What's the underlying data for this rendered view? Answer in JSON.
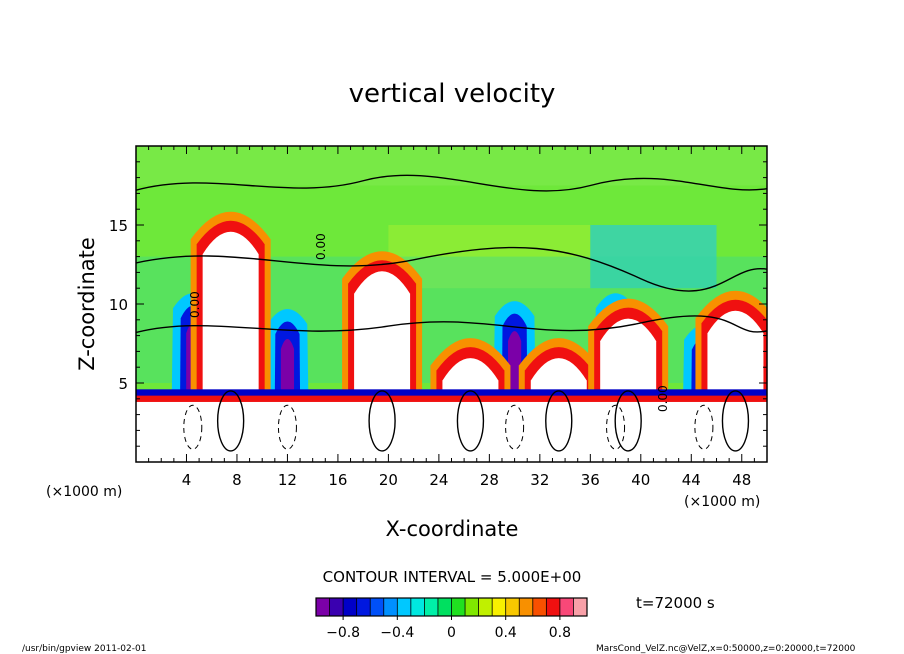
{
  "chart_data": {
    "type": "heatmap",
    "title": "vertical velocity",
    "xlabel": "X-coordinate",
    "ylabel": "Z-coordinate",
    "x_unit_label": "(×1000 m)",
    "y_unit_label": "(×1000 m)",
    "xlim": [
      0,
      50
    ],
    "ylim": [
      0,
      20
    ],
    "x_ticks": [
      4,
      8,
      12,
      16,
      20,
      24,
      28,
      32,
      36,
      40,
      44,
      48
    ],
    "y_ticks": [
      5,
      10,
      15
    ],
    "contour_interval_text": "CONTOUR INTERVAL = 5.000E+00",
    "contour_labels": [
      "0.00",
      "0.00",
      "0.00"
    ],
    "time_text": "t=72000 s",
    "colorbar": {
      "min": -1.0,
      "max": 1.0,
      "tick_values": [
        -0.8,
        -0.4,
        0,
        0.4,
        0.8
      ],
      "tick_labels": [
        "−0.8",
        "−0.4",
        "0",
        "0.4",
        "0.8"
      ],
      "colors": [
        "#7b00a8",
        "#3a00b0",
        "#0000c8",
        "#0018e0",
        "#0050f8",
        "#0090ff",
        "#00c8ff",
        "#00e8e0",
        "#00f0a8",
        "#00e060",
        "#20e020",
        "#80e800",
        "#c0f000",
        "#f8f000",
        "#f8c800",
        "#f89000",
        "#f85000",
        "#f01010",
        "#f84878",
        "#f8a0a8"
      ]
    },
    "updrafts": [
      {
        "x": 7.5,
        "top": 16.0
      },
      {
        "x": 19.5,
        "top": 13.5
      },
      {
        "x": 26.5,
        "top": 8.0
      },
      {
        "x": 33.5,
        "top": 8.0
      },
      {
        "x": 39.0,
        "top": 10.5
      },
      {
        "x": 47.5,
        "top": 11.0
      }
    ],
    "downdrafts": [
      {
        "x": 4.5,
        "top": 11.0
      },
      {
        "x": 12.0,
        "top": 10.0
      },
      {
        "x": 30.0,
        "top": 10.5
      },
      {
        "x": 38.0,
        "top": 11.0
      },
      {
        "x": 45.0,
        "top": 9.0
      }
    ]
  },
  "footer": {
    "left": "/usr/bin/gpview   2011-02-01",
    "right": "MarsCond_VelZ.nc@VelZ,x=0:50000,z=0:20000,t=72000"
  }
}
